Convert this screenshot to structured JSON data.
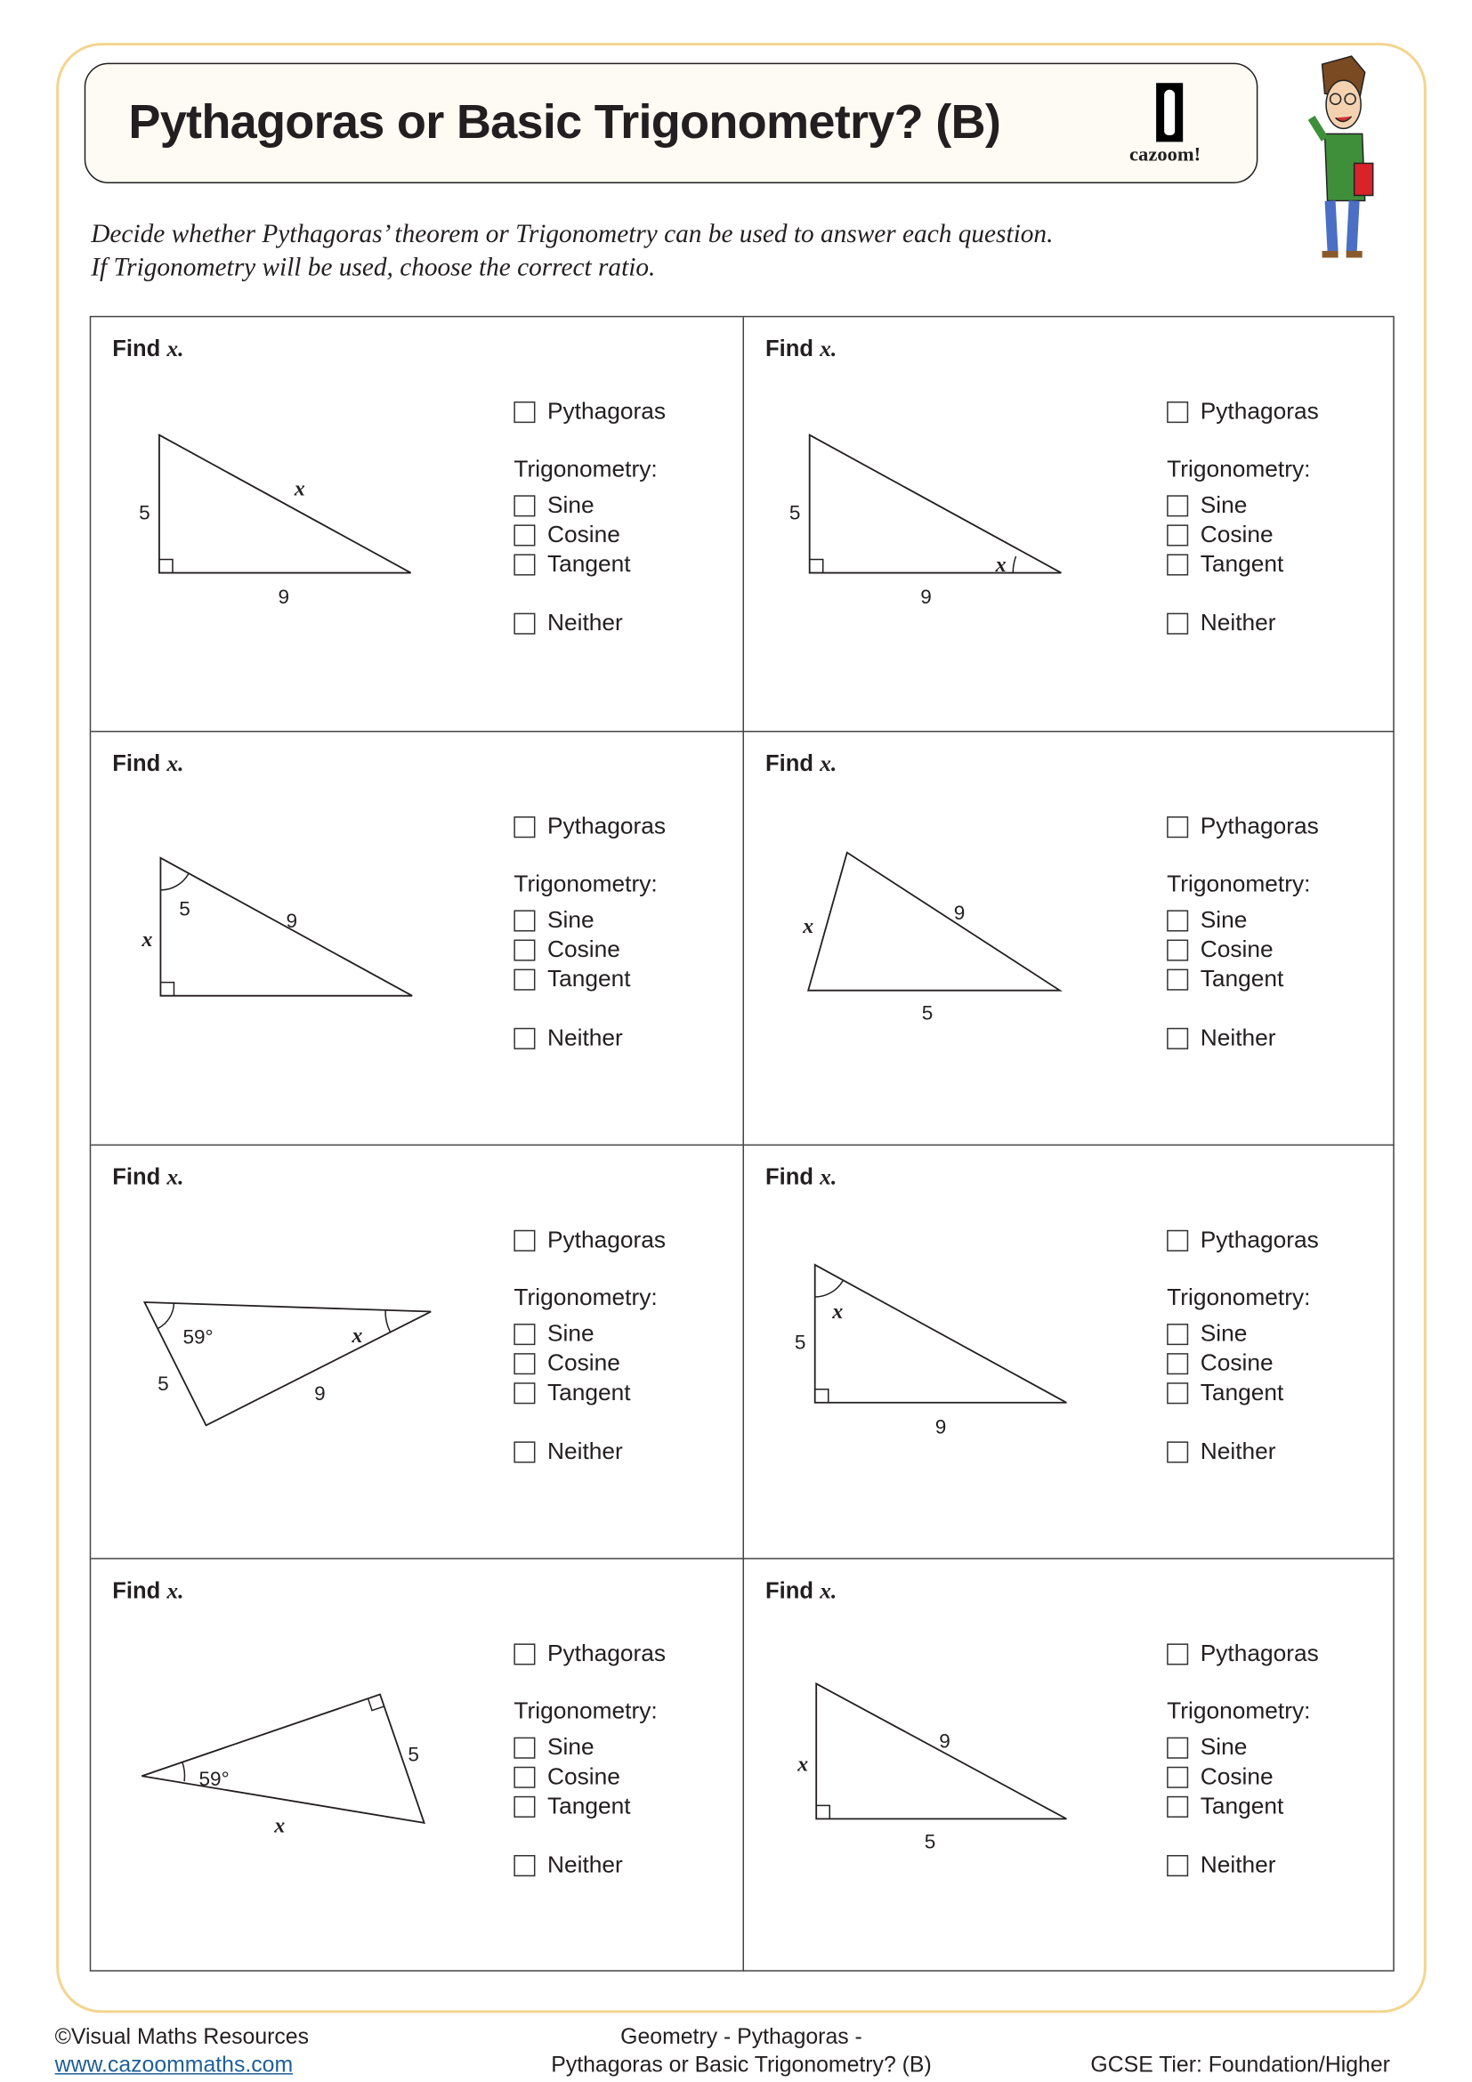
{
  "header": {
    "title": "Pythagoras or Basic Trigonometry? (B)",
    "logo_text": "cazoom!"
  },
  "instructions": [
    "Decide whether Pythagoras’ theorem or Trigonometry can be used to answer each question.",
    "If Trigonometry will be used, choose the correct ratio."
  ],
  "question_prompt": {
    "find": "Find",
    "var": "x."
  },
  "options": {
    "pythagoras": "Pythagoras",
    "trigonometry": "Trigonometry:",
    "sine": "Sine",
    "cosine": "Cosine",
    "tangent": "Tangent",
    "neither": "Neither"
  },
  "questions": [
    {
      "labels": [
        "5",
        "9",
        "x"
      ]
    },
    {
      "labels": [
        "5",
        "9",
        "x"
      ]
    },
    {
      "labels": [
        "5",
        "9",
        "x"
      ]
    },
    {
      "labels": [
        "x",
        "9",
        "5"
      ]
    },
    {
      "labels": [
        "59°",
        "x",
        "5",
        "9"
      ]
    },
    {
      "labels": [
        "x",
        "5",
        "9"
      ]
    },
    {
      "labels": [
        "59°",
        "5",
        "x"
      ]
    },
    {
      "labels": [
        "x",
        "9",
        "5"
      ]
    }
  ],
  "footer": {
    "copyright": "©Visual Maths Resources",
    "website": "www.cazoommaths.com",
    "topic_line1": "Geometry - Pythagoras -",
    "topic_line2": "Pythagoras or Basic Trigonometry? (B)",
    "tier": "GCSE Tier: Foundation/Higher"
  },
  "colors": {
    "frame": "#f3d58f",
    "title_bg": "#fdfbf4",
    "link": "#1f5f99"
  }
}
